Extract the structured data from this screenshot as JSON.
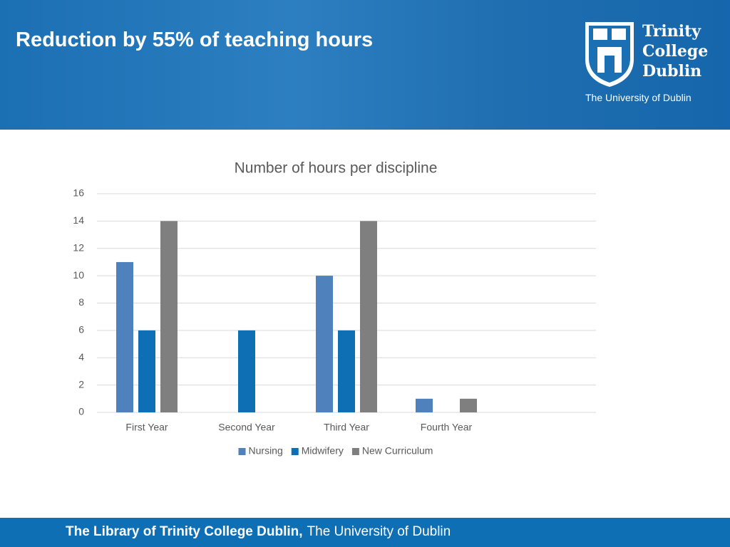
{
  "slide": {
    "title": "Reduction by 55% of teaching hours",
    "logo": {
      "line1": "Trinity",
      "line2": "College",
      "line3": "Dublin",
      "subtitle": "The University of Dublin"
    },
    "footer": {
      "bold": "The Library of Trinity College Dublin,",
      "rest": "The University of Dublin"
    }
  },
  "chart_data": {
    "type": "bar",
    "title": "Number of hours per discipline",
    "categories": [
      "First Year",
      "Second Year",
      "Third Year",
      "Fourth Year",
      null
    ],
    "series": [
      {
        "name": "Nursing",
        "color": "#4f81bd",
        "values": [
          11,
          0,
          10,
          1,
          null
        ]
      },
      {
        "name": "Midwifery",
        "color": "#0f6fb5",
        "values": [
          6,
          6,
          6,
          0,
          null
        ]
      },
      {
        "name": "New Curriculum",
        "color": "#7f7f7f",
        "values": [
          14,
          0,
          14,
          1,
          null
        ]
      }
    ],
    "ylim": [
      0,
      16
    ],
    "yticks": [
      0,
      2,
      4,
      6,
      8,
      10,
      12,
      14,
      16
    ],
    "grid": true,
    "legend": "bottom"
  }
}
